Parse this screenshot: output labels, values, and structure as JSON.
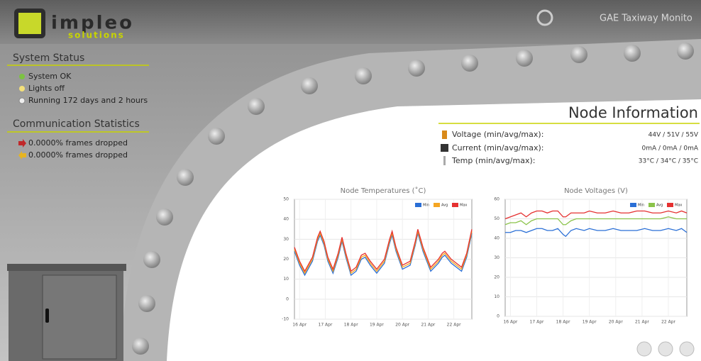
{
  "header": {
    "logo_main": "impleo",
    "logo_sub": "solutions",
    "app_title": "GAE Taxiway Monito"
  },
  "system_status": {
    "title": "System Status",
    "items": [
      "System OK",
      "Lights off",
      "Running 172 days and 2 hours"
    ]
  },
  "communication_statistics": {
    "title": "Communication Statistics",
    "items": [
      "0.0000% frames dropped",
      "0.0000% frames dropped"
    ]
  },
  "node_information": {
    "title": "Node Information",
    "rows": [
      {
        "label": "Voltage (min/avg/max):",
        "value": "44V / 51V / 55V"
      },
      {
        "label": "Current (min/avg/max):",
        "value": "0mA / 0mA / 0mA"
      },
      {
        "label": "Temp (min/avg/max):",
        "value": "33°C / 34°C / 35°C"
      }
    ]
  },
  "chart_data": [
    {
      "type": "line",
      "title": "Node Temperatures (˚C)",
      "grid": true,
      "legend": "top-right",
      "xlim": [
        15.8,
        22.7
      ],
      "xticks": [
        {
          "value": 16,
          "label": "16 Apr"
        },
        {
          "value": 17,
          "label": "17 Apr"
        },
        {
          "value": 18,
          "label": "18 Apr"
        },
        {
          "value": 19,
          "label": "19 Apr"
        },
        {
          "value": 20,
          "label": "20 Apr"
        },
        {
          "value": 21,
          "label": "21 Apr"
        },
        {
          "value": 22,
          "label": "22 Apr"
        }
      ],
      "ylim": [
        -10,
        50
      ],
      "yticks": [
        -10,
        0,
        10,
        20,
        30,
        40,
        50
      ],
      "x": [
        15.8,
        16.0,
        16.2,
        16.5,
        16.7,
        16.8,
        16.95,
        17.1,
        17.3,
        17.5,
        17.65,
        17.8,
        18.0,
        18.2,
        18.4,
        18.55,
        18.75,
        19.0,
        19.3,
        19.5,
        19.6,
        19.75,
        20.0,
        20.3,
        20.5,
        20.6,
        20.8,
        21.1,
        21.4,
        21.55,
        21.65,
        21.9,
        22.1,
        22.3,
        22.5,
        22.7
      ],
      "series": [
        {
          "name": "Min",
          "color": "#2a6fd6",
          "values": [
            24,
            17,
            12,
            19,
            29,
            32,
            27,
            19,
            13,
            21,
            29,
            21,
            12,
            14,
            20,
            21,
            17,
            13,
            18,
            28,
            32,
            24,
            15,
            17,
            27,
            33,
            24,
            14,
            18,
            21,
            22,
            18,
            16,
            14,
            21,
            33
          ]
        },
        {
          "name": "Avg",
          "color": "#f5a623",
          "values": [
            25,
            18,
            13,
            20,
            30,
            33,
            28,
            20,
            14,
            22,
            30,
            22,
            13,
            15,
            21,
            22,
            18,
            14,
            19,
            29,
            33,
            25,
            16,
            18,
            28,
            34,
            25,
            15,
            19,
            22,
            23,
            19,
            17,
            15,
            22,
            34
          ]
        },
        {
          "name": "Max",
          "color": "#e53030",
          "values": [
            26,
            19,
            14,
            21,
            31,
            34,
            29,
            21,
            15,
            23,
            31,
            23,
            14,
            16,
            22,
            23,
            19,
            15,
            20,
            30,
            34,
            26,
            17,
            19,
            29,
            35,
            26,
            16,
            20,
            23,
            24,
            20,
            18,
            16,
            23,
            35
          ]
        }
      ]
    },
    {
      "type": "line",
      "title": "Node Voltages (V)",
      "grid": true,
      "legend": "top-right",
      "xlim": [
        15.8,
        22.7
      ],
      "xticks": [
        {
          "value": 16,
          "label": "16 Apr"
        },
        {
          "value": 17,
          "label": "17 Apr"
        },
        {
          "value": 18,
          "label": "18 Apr"
        },
        {
          "value": 19,
          "label": "19 Apr"
        },
        {
          "value": 20,
          "label": "20 Apr"
        },
        {
          "value": 21,
          "label": "21 Apr"
        },
        {
          "value": 22,
          "label": "22 Apr"
        }
      ],
      "ylim": [
        0,
        60
      ],
      "yticks": [
        0,
        10,
        20,
        30,
        40,
        50,
        60
      ],
      "x": [
        15.8,
        16.0,
        16.2,
        16.4,
        16.6,
        16.8,
        17.0,
        17.2,
        17.4,
        17.6,
        17.8,
        18.0,
        18.1,
        18.3,
        18.5,
        18.8,
        19.0,
        19.3,
        19.6,
        19.9,
        20.2,
        20.5,
        20.8,
        21.1,
        21.4,
        21.7,
        22.0,
        22.3,
        22.5,
        22.7
      ],
      "series": [
        {
          "name": "Min",
          "color": "#2a6fd6",
          "values": [
            43,
            43,
            44,
            44,
            43,
            44,
            45,
            45,
            44,
            44,
            45,
            42,
            41,
            44,
            45,
            44,
            45,
            44,
            44,
            45,
            44,
            44,
            44,
            45,
            44,
            44,
            45,
            44,
            45,
            43
          ]
        },
        {
          "name": "Avg",
          "color": "#8bc34a",
          "values": [
            47,
            48,
            48,
            49,
            47,
            49,
            50,
            50,
            50,
            50,
            50,
            47,
            47,
            49,
            50,
            50,
            50,
            50,
            50,
            50,
            50,
            50,
            50,
            50,
            50,
            50,
            51,
            50,
            50,
            50
          ]
        },
        {
          "name": "Max",
          "color": "#e53030",
          "values": [
            50,
            51,
            52,
            53,
            51,
            53,
            54,
            54,
            53,
            54,
            54,
            51,
            51,
            53,
            53,
            53,
            54,
            53,
            53,
            54,
            53,
            53,
            54,
            54,
            53,
            53,
            54,
            53,
            54,
            53
          ]
        }
      ]
    }
  ]
}
